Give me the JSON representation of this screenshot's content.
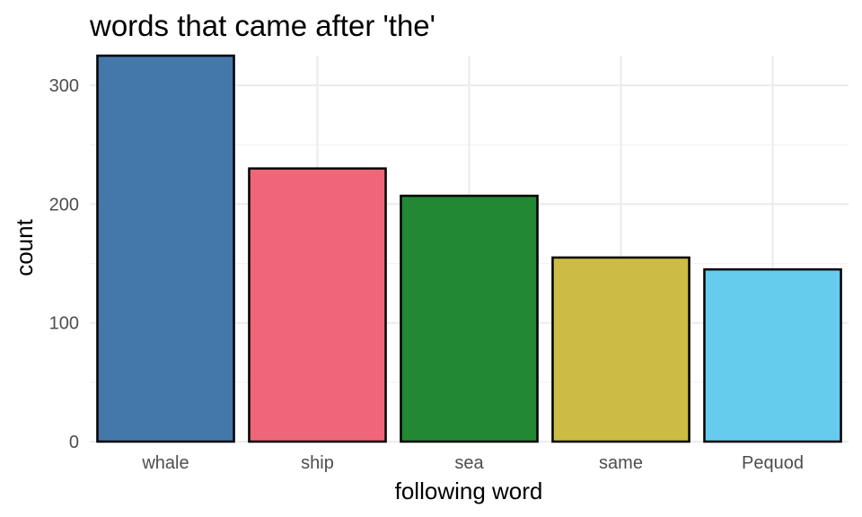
{
  "chart_data": {
    "type": "bar",
    "title": "words that came after 'the'",
    "xlabel": "following word",
    "ylabel": "count",
    "categories": [
      "whale",
      "ship",
      "sea",
      "same",
      "Pequod"
    ],
    "values": [
      325,
      230,
      207,
      155,
      145
    ],
    "colors": [
      "#4477aa",
      "#ee6677",
      "#228833",
      "#ccbb44",
      "#66ccee"
    ],
    "bar_outline_color": "#000000",
    "ylim": [
      0,
      325
    ],
    "yticks": [
      0,
      100,
      200,
      300
    ],
    "yticks_labels": [
      "0",
      "100",
      "200",
      "300"
    ],
    "grid": true,
    "legend": "none"
  }
}
